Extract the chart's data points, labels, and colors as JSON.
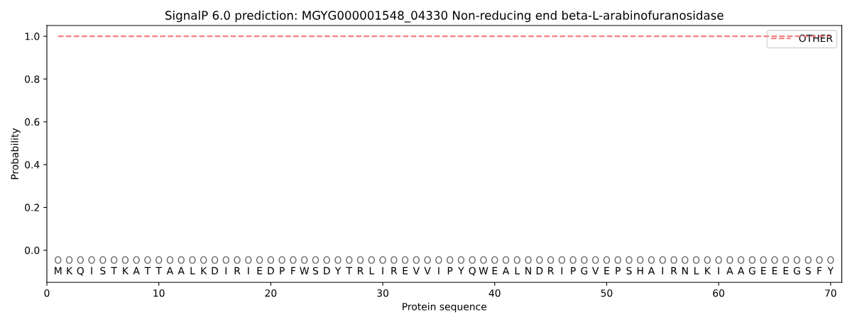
{
  "chart_data": {
    "type": "line",
    "title": "SignalP 6.0 prediction: MGYG000001548_04330 Non-reducing end beta-L-arabinofuranosidase",
    "xlabel": "Protein sequence",
    "ylabel": "Probability",
    "x": [
      1,
      2,
      3,
      4,
      5,
      6,
      7,
      8,
      9,
      10,
      11,
      12,
      13,
      14,
      15,
      16,
      17,
      18,
      19,
      20,
      21,
      22,
      23,
      24,
      25,
      26,
      27,
      28,
      29,
      30,
      31,
      32,
      33,
      34,
      35,
      36,
      37,
      38,
      39,
      40,
      41,
      42,
      43,
      44,
      45,
      46,
      47,
      48,
      49,
      50,
      51,
      52,
      53,
      54,
      55,
      56,
      57,
      58,
      59,
      60,
      61,
      62,
      63,
      64,
      65,
      66,
      67,
      68,
      69,
      70
    ],
    "series": [
      {
        "name": "OTHER",
        "color": "#f08080",
        "line_style": "dashed",
        "values": [
          1.0,
          1.0,
          1.0,
          1.0,
          1.0,
          1.0,
          1.0,
          1.0,
          1.0,
          1.0,
          1.0,
          1.0,
          1.0,
          1.0,
          1.0,
          1.0,
          1.0,
          1.0,
          1.0,
          1.0,
          1.0,
          1.0,
          1.0,
          1.0,
          1.0,
          1.0,
          1.0,
          1.0,
          1.0,
          1.0,
          1.0,
          1.0,
          1.0,
          1.0,
          1.0,
          1.0,
          1.0,
          1.0,
          1.0,
          1.0,
          1.0,
          1.0,
          1.0,
          1.0,
          1.0,
          1.0,
          1.0,
          1.0,
          1.0,
          1.0,
          1.0,
          1.0,
          1.0,
          1.0,
          1.0,
          1.0,
          1.0,
          1.0,
          1.0,
          1.0,
          1.0,
          1.0,
          1.0,
          1.0,
          1.0,
          1.0,
          1.0,
          1.0,
          1.0,
          1.0
        ]
      }
    ],
    "annotations": [
      "OOOOOOOOOOOOOOOOOOOOOOOOOOOOOOOOOOOOOOOOOOOOOOOOOOOOOOOOOOOOOOOOOOOOOO",
      "MKQISTKATTAALKDIRIEDPFWSDYTRLIREVVIPYQWEALNDRIPGVEPSHAIRNLKIAAGEEEGSFY"
    ],
    "xlim": [
      0,
      71
    ],
    "ylim": [
      -0.15,
      1.05
    ],
    "xticks": [
      0,
      10,
      20,
      30,
      40,
      50,
      60,
      70
    ],
    "yticks": [
      {
        "value": 0,
        "label": "0.0"
      },
      {
        "value": 0.2,
        "label": "0.2"
      },
      {
        "value": 0.4,
        "label": "0.4"
      },
      {
        "value": 0.6,
        "label": "0.6"
      },
      {
        "value": 0.8,
        "label": "0.8"
      },
      {
        "value": 1.0,
        "label": "1.0"
      }
    ],
    "grid": false,
    "legend": "top right"
  }
}
